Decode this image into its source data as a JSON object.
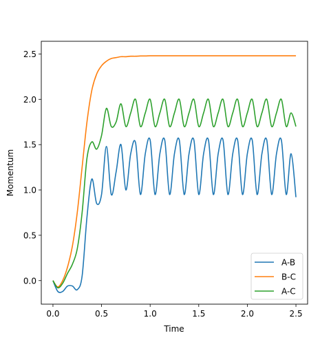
{
  "chart_data": {
    "type": "line",
    "title": "",
    "xlabel": "Time",
    "ylabel": "Momentum",
    "xlim": [
      -0.12,
      2.62
    ],
    "ylim": [
      -0.26,
      2.64
    ],
    "x_ticks": [
      0.0,
      0.5,
      1.0,
      1.5,
      2.0,
      2.5
    ],
    "x_tick_labels": [
      "0.0",
      "0.5",
      "1.0",
      "1.5",
      "2.0",
      "2.5"
    ],
    "y_ticks": [
      0.0,
      0.5,
      1.0,
      1.5,
      2.0,
      2.5
    ],
    "y_tick_labels": [
      "0.0",
      "0.5",
      "1.0",
      "1.5",
      "2.0",
      "2.5"
    ],
    "grid": false,
    "legend_position": "lower-right",
    "x": [
      0.0,
      0.05,
      0.1,
      0.15,
      0.2,
      0.25,
      0.3,
      0.35,
      0.4,
      0.45,
      0.5,
      0.55,
      0.6,
      0.65,
      0.7,
      0.75,
      0.8,
      0.85,
      0.9,
      0.95,
      1.0,
      1.05,
      1.1,
      1.15,
      1.2,
      1.25,
      1.3,
      1.35,
      1.4,
      1.45,
      1.5,
      1.55,
      1.6,
      1.65,
      1.7,
      1.75,
      1.8,
      1.85,
      1.9,
      1.95,
      2.0,
      2.05,
      2.1,
      2.15,
      2.2,
      2.25,
      2.3,
      2.35,
      2.4,
      2.45,
      2.5
    ],
    "series": [
      {
        "name": "A-B",
        "color": "#1f77b4",
        "values": [
          0.0,
          -0.12,
          -0.12,
          -0.06,
          -0.06,
          -0.1,
          0.05,
          0.7,
          1.12,
          0.85,
          0.95,
          1.48,
          0.95,
          1.2,
          1.5,
          1.0,
          1.4,
          1.52,
          0.95,
          1.4,
          1.55,
          0.95,
          1.4,
          1.55,
          0.95,
          1.4,
          1.55,
          0.95,
          1.4,
          1.55,
          0.95,
          1.4,
          1.55,
          0.95,
          1.4,
          1.55,
          0.95,
          1.4,
          1.55,
          0.95,
          1.4,
          1.55,
          0.95,
          1.4,
          1.55,
          0.95,
          1.4,
          1.55,
          0.95,
          1.4,
          0.92
        ]
      },
      {
        "name": "B-C",
        "color": "#ff7f0e",
        "values": [
          0.0,
          -0.07,
          0.0,
          0.15,
          0.38,
          0.75,
          1.25,
          1.75,
          2.1,
          2.28,
          2.37,
          2.42,
          2.45,
          2.46,
          2.47,
          2.47,
          2.475,
          2.475,
          2.478,
          2.478,
          2.48,
          2.48,
          2.48,
          2.48,
          2.48,
          2.48,
          2.48,
          2.48,
          2.48,
          2.48,
          2.48,
          2.48,
          2.48,
          2.48,
          2.48,
          2.48,
          2.48,
          2.48,
          2.48,
          2.48,
          2.48,
          2.48,
          2.48,
          2.48,
          2.48,
          2.48,
          2.48,
          2.48,
          2.48,
          2.48,
          2.48
        ]
      },
      {
        "name": "A-C",
        "color": "#2ca02c",
        "values": [
          0.0,
          -0.08,
          -0.03,
          0.08,
          0.18,
          0.35,
          0.75,
          1.35,
          1.53,
          1.45,
          1.6,
          1.9,
          1.7,
          1.75,
          1.95,
          1.7,
          1.85,
          2.0,
          1.7,
          1.85,
          2.0,
          1.7,
          1.85,
          2.0,
          1.7,
          1.85,
          2.0,
          1.7,
          1.85,
          2.0,
          1.7,
          1.85,
          2.0,
          1.7,
          1.85,
          2.0,
          1.7,
          1.85,
          2.0,
          1.7,
          1.85,
          2.0,
          1.7,
          1.85,
          2.0,
          1.7,
          1.85,
          2.0,
          1.7,
          1.85,
          1.7
        ]
      }
    ]
  }
}
